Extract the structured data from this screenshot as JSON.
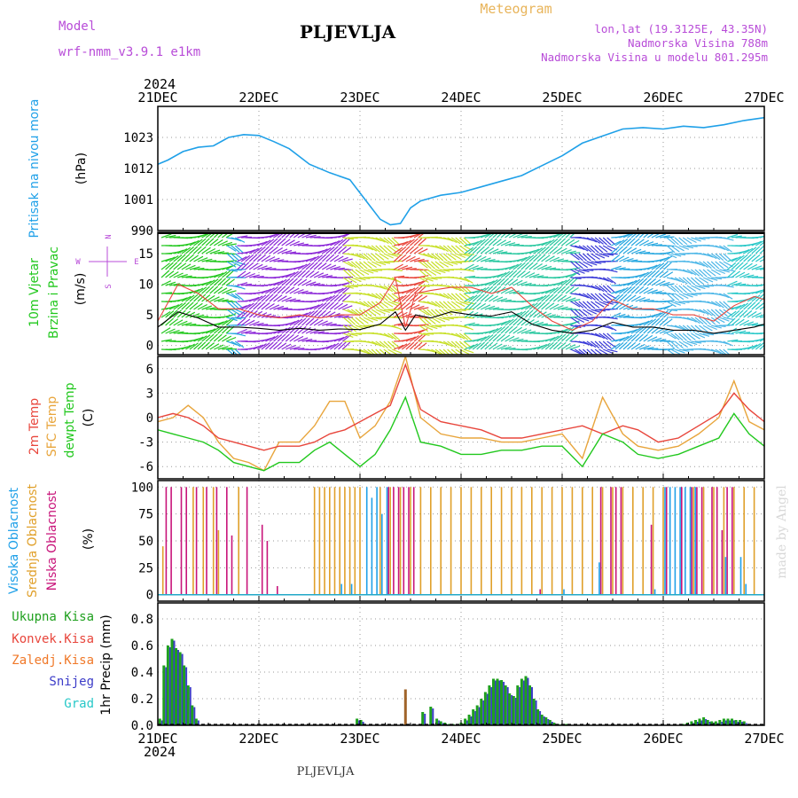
{
  "header": {
    "model_label": "Model",
    "model_name": "wrf-nmm_v3.9.1  e1km",
    "station": "PLJEVLJA",
    "product": "Meteogram",
    "lonlat": "lon,lat (19.3125E, 43.35N)",
    "elevation": "Nadmorska Visina 788m",
    "model_elevation": "Nadmorska Visina u modelu 801.295m"
  },
  "footer": {
    "station": "PLJEVLJA",
    "credit": "made by Angel"
  },
  "time_axis": {
    "year": "2024",
    "ticks": [
      "21DEC",
      "22DEC",
      "23DEC",
      "24DEC",
      "25DEC",
      "26DEC",
      "27DEC"
    ]
  },
  "colors": {
    "pressure": "#1fa0e8",
    "temp2m": "#e8463c",
    "sfc": "#e8a53c",
    "dewpt": "#22c81e",
    "wind_black": "#000000",
    "wind_red": "#e8463c",
    "high_cloud": "#1fa0e8",
    "mid_cloud": "#e0a02a",
    "low_cloud": "#c8147a",
    "total_precip": "#1fa01e",
    "snow": "#3c3cc8",
    "conv": "#e8463c",
    "frz": "#f07828",
    "grad": "#28c8c8"
  },
  "chart_data": [
    {
      "type": "line",
      "title": "",
      "ylabel": [
        "Pritisak na nivou mora",
        "(hPa)"
      ],
      "ylim": [
        990,
        1034
      ],
      "yticks": [
        990,
        1001,
        1012,
        1023
      ],
      "x_unit": "days since 21DEC 00",
      "grid": true,
      "series": [
        {
          "name": "Pritisak na nivou mora",
          "x": [
            0,
            0.1,
            0.25,
            0.4,
            0.55,
            0.7,
            0.85,
            1.0,
            1.15,
            1.3,
            1.5,
            1.7,
            1.9,
            2.05,
            2.2,
            2.3,
            2.4,
            2.5,
            2.6,
            2.7,
            2.8,
            3.0,
            3.2,
            3.4,
            3.6,
            3.8,
            4.0,
            4.2,
            4.4,
            4.6,
            4.8,
            5.0,
            5.2,
            5.4,
            5.6,
            5.8,
            6.0
          ],
          "values": [
            1013.5,
            1015,
            1018,
            1019.5,
            1020,
            1023,
            1024,
            1023.7,
            1021.5,
            1019,
            1013.5,
            1010.5,
            1008,
            1001,
            994,
            992,
            992.5,
            998,
            1000.5,
            1001.5,
            1002.5,
            1003.5,
            1005.5,
            1007.5,
            1009.5,
            1013,
            1016.5,
            1021,
            1023.5,
            1026,
            1026.5,
            1026,
            1027,
            1026.5,
            1027.5,
            1029,
            1030
          ]
        }
      ]
    },
    {
      "type": "line",
      "title": "",
      "ylabel": [
        "10m Vjetar",
        "Brzina i Pravac",
        "(m/s)"
      ],
      "compass": [
        "N",
        "W",
        "E",
        "S"
      ],
      "ylim": [
        -1.5,
        18.5
      ],
      "yticks": [
        0,
        5,
        10,
        15
      ],
      "x_unit": "days since 21DEC 00",
      "grid": true,
      "series": [
        {
          "name": "speed",
          "x": [
            0,
            0.2,
            0.4,
            0.6,
            0.8,
            1.0,
            1.2,
            1.4,
            1.6,
            1.8,
            2.0,
            2.2,
            2.35,
            2.45,
            2.55,
            2.7,
            2.9,
            3.1,
            3.3,
            3.5,
            3.7,
            3.9,
            4.1,
            4.3,
            4.5,
            4.7,
            4.9,
            5.1,
            5.3,
            5.5,
            5.7,
            5.9,
            6.0
          ],
          "values": [
            3,
            5.5,
            4.5,
            3,
            3,
            2.8,
            2.5,
            2.8,
            2.5,
            2.7,
            2.6,
            3.5,
            5.5,
            2.5,
            5,
            4.5,
            5.5,
            5,
            4.8,
            5.5,
            3.5,
            2.5,
            2,
            2.5,
            3.8,
            3,
            3,
            2.5,
            2.5,
            2,
            2.5,
            3,
            3.5
          ]
        },
        {
          "name": "gust",
          "x": [
            0,
            0.2,
            0.4,
            0.6,
            0.8,
            1.0,
            1.2,
            1.4,
            1.6,
            1.8,
            2.0,
            2.2,
            2.35,
            2.45,
            2.55,
            2.7,
            2.9,
            3.1,
            3.3,
            3.5,
            3.7,
            3.9,
            4.1,
            4.3,
            4.5,
            4.7,
            4.9,
            5.1,
            5.3,
            5.5,
            5.7,
            5.9,
            6.0
          ],
          "values": [
            4,
            10,
            8.5,
            6,
            6,
            5,
            4.5,
            5,
            4.5,
            5,
            5,
            7,
            11,
            3,
            8.5,
            9,
            9.5,
            9.5,
            8.5,
            9.5,
            6.5,
            4,
            2.5,
            4,
            7.5,
            6,
            6,
            5,
            5,
            4,
            6.5,
            8,
            7.5
          ]
        }
      ],
      "wind_segments": [
        {
          "x0": 0.0,
          "x1": 0.65,
          "color": "#22c81e"
        },
        {
          "x0": 0.65,
          "x1": 0.75,
          "color": "#28a8e0"
        },
        {
          "x0": 0.75,
          "x1": 1.8,
          "color": "#8c28d8"
        },
        {
          "x0": 1.8,
          "x1": 2.3,
          "color": "#c8e02a"
        },
        {
          "x0": 2.3,
          "x1": 2.55,
          "color": "#e8463c"
        },
        {
          "x0": 2.55,
          "x1": 3.0,
          "color": "#c8e02a"
        },
        {
          "x0": 3.0,
          "x1": 4.05,
          "color": "#2ac8a0"
        },
        {
          "x0": 4.05,
          "x1": 4.45,
          "color": "#3c3cd8"
        },
        {
          "x0": 4.45,
          "x1": 5.0,
          "color": "#28a8e0"
        },
        {
          "x0": 5.0,
          "x1": 5.6,
          "color": "#50b8e8"
        },
        {
          "x0": 5.6,
          "x1": 6.0,
          "color": "#28c8c8"
        }
      ]
    },
    {
      "type": "line",
      "title": "",
      "ylabel": [
        "2m Temp",
        "SFC Temp",
        "dewpt Temp",
        "(C)"
      ],
      "ylim": [
        -7.5,
        7.5
      ],
      "yticks": [
        -6,
        -3,
        0,
        3,
        6
      ],
      "x_unit": "days since 21DEC 00",
      "grid": true,
      "series": [
        {
          "name": "2m Temp",
          "x": [
            0,
            0.15,
            0.3,
            0.45,
            0.6,
            0.75,
            0.9,
            1.05,
            1.2,
            1.4,
            1.55,
            1.7,
            1.85,
            2.0,
            2.15,
            2.3,
            2.45,
            2.6,
            2.8,
            3.0,
            3.2,
            3.4,
            3.6,
            3.8,
            4.0,
            4.2,
            4.4,
            4.6,
            4.75,
            4.95,
            5.15,
            5.35,
            5.55,
            5.7,
            5.85,
            6.0
          ],
          "values": [
            0,
            0.5,
            0,
            -1,
            -2.5,
            -3,
            -3.5,
            -4,
            -3.5,
            -3.5,
            -3,
            -2,
            -1.5,
            -0.5,
            0.5,
            1.5,
            6.5,
            1,
            -0.5,
            -1,
            -1.5,
            -2.5,
            -2.5,
            -2,
            -1.5,
            -1,
            -2,
            -1,
            -1.5,
            -3,
            -2.5,
            -1,
            0.5,
            3,
            1,
            -0.5
          ]
        },
        {
          "name": "SFC Temp",
          "x": [
            0,
            0.15,
            0.3,
            0.45,
            0.6,
            0.75,
            0.9,
            1.05,
            1.2,
            1.4,
            1.55,
            1.7,
            1.85,
            2.0,
            2.15,
            2.3,
            2.45,
            2.6,
            2.8,
            3.0,
            3.2,
            3.4,
            3.6,
            3.8,
            4.0,
            4.2,
            4.4,
            4.6,
            4.75,
            4.95,
            5.15,
            5.35,
            5.55,
            5.7,
            5.85,
            6.0
          ],
          "values": [
            -0.5,
            0,
            1.5,
            0,
            -3,
            -5,
            -5.5,
            -6.5,
            -3,
            -3,
            -1,
            2,
            2,
            -2.5,
            -1,
            2,
            7.5,
            0,
            -2,
            -2.5,
            -2.5,
            -3,
            -3,
            -2.5,
            -2,
            -5,
            2.5,
            -2,
            -3.5,
            -4,
            -3.5,
            -2,
            0,
            4.5,
            -0.5,
            -1.5
          ]
        },
        {
          "name": "dewpt Temp",
          "x": [
            0,
            0.15,
            0.3,
            0.45,
            0.6,
            0.75,
            0.9,
            1.05,
            1.2,
            1.4,
            1.55,
            1.7,
            1.85,
            2.0,
            2.15,
            2.3,
            2.45,
            2.6,
            2.8,
            3.0,
            3.2,
            3.4,
            3.6,
            3.8,
            4.0,
            4.2,
            4.4,
            4.6,
            4.75,
            4.95,
            5.15,
            5.35,
            5.55,
            5.7,
            5.85,
            6.0
          ],
          "values": [
            -1.5,
            -2,
            -2.5,
            -3,
            -4,
            -5.5,
            -6,
            -6.5,
            -5.5,
            -5.5,
            -4,
            -3,
            -4.5,
            -6,
            -4.5,
            -1.5,
            2.5,
            -3,
            -3.5,
            -4.5,
            -4.5,
            -4,
            -4,
            -3.5,
            -3.5,
            -6,
            -2,
            -3,
            -4.5,
            -5,
            -4.5,
            -3.5,
            -2.5,
            0.5,
            -2,
            -3.5
          ]
        }
      ]
    },
    {
      "type": "bar",
      "title": "",
      "ylabel": [
        "Visoka Oblacnost",
        "Srednja Oblacnost",
        "Niska Oblacnost",
        "(%)"
      ],
      "ylim": [
        -6,
        106
      ],
      "yticks": [
        0,
        25,
        50,
        75,
        100
      ],
      "x_unit": "days since 21DEC 00",
      "grid": true,
      "series": [
        {
          "name": "Visoka Oblacnost",
          "x": [
            1.8,
            1.9,
            2.05,
            2.1,
            2.15,
            2.2,
            2.25,
            4.0,
            4.35,
            4.9,
            5.0,
            5.05,
            5.1,
            5.15,
            5.2,
            5.25,
            5.3,
            5.6,
            5.75,
            5.8
          ],
          "values": [
            10,
            10,
            100,
            90,
            100,
            75,
            100,
            5,
            30,
            5,
            100,
            100,
            100,
            100,
            100,
            100,
            100,
            35,
            35,
            10
          ]
        },
        {
          "name": "Srednja Oblacnost",
          "x": [
            0.05,
            0.35,
            0.45,
            0.55,
            0.6,
            0.8,
            1.55,
            1.6,
            1.65,
            1.7,
            1.75,
            1.8,
            1.85,
            1.9,
            1.95,
            2.0,
            2.2,
            2.3,
            2.4,
            2.5,
            2.6,
            2.7,
            2.8,
            2.9,
            3.0,
            3.1,
            3.2,
            3.3,
            3.4,
            3.5,
            3.6,
            3.7,
            3.8,
            3.9,
            4.0,
            4.1,
            4.2,
            4.3,
            4.4,
            4.5,
            4.6,
            4.7,
            4.8,
            4.9,
            5.0,
            5.3,
            5.4,
            5.5,
            5.6,
            5.7,
            5.8,
            5.9
          ],
          "values": [
            45,
            100,
            100,
            100,
            60,
            100,
            100,
            100,
            100,
            100,
            100,
            100,
            100,
            100,
            100,
            100,
            100,
            100,
            100,
            100,
            100,
            100,
            100,
            100,
            100,
            100,
            100,
            100,
            100,
            100,
            100,
            100,
            100,
            100,
            100,
            100,
            100,
            100,
            100,
            100,
            100,
            100,
            100,
            100,
            100,
            100,
            100,
            100,
            100,
            100,
            100,
            100
          ]
        },
        {
          "name": "Niska Oblacnost",
          "x": [
            0.1,
            0.15,
            0.25,
            0.3,
            0.4,
            0.5,
            0.6,
            0.7,
            0.75,
            0.9,
            1.05,
            1.1,
            1.2,
            2.3,
            2.35,
            2.4,
            2.45,
            2.5,
            2.55,
            3.8,
            4.4,
            4.5,
            4.55,
            4.6,
            4.9,
            5.05,
            5.2,
            5.3,
            5.35,
            5.4,
            5.5,
            5.55,
            5.6,
            5.65,
            5.7
          ],
          "values": [
            100,
            100,
            100,
            100,
            100,
            100,
            100,
            100,
            55,
            100,
            65,
            50,
            8,
            100,
            100,
            100,
            100,
            100,
            100,
            5,
            100,
            100,
            100,
            100,
            65,
            100,
            100,
            100,
            100,
            100,
            100,
            100,
            60,
            100,
            100
          ]
        }
      ]
    },
    {
      "type": "bar",
      "title": "",
      "ylabel": [
        "1hr Precip (mm)"
      ],
      "legend_items": [
        "Ukupna Kisa",
        "Konvek.Kisa",
        "Zaledj.Kisa",
        "Snijeg",
        "Grad"
      ],
      "ylim": [
        0,
        0.92
      ],
      "yticks": [
        0,
        0.2,
        0.4,
        0.6,
        0.8
      ],
      "x_unit": "days since 21DEC 00",
      "grid": true,
      "series": [
        {
          "name": "Ukupna Kisa",
          "x": [
            0.02,
            0.06,
            0.1,
            0.14,
            0.18,
            0.22,
            0.26,
            0.3,
            0.34,
            0.38,
            1.97,
            2.01,
            2.62,
            2.7,
            2.76,
            2.8,
            2.84,
            2.88,
            2.92,
            3.0,
            3.04,
            3.08,
            3.12,
            3.16,
            3.2,
            3.24,
            3.28,
            3.32,
            3.36,
            3.4,
            3.44,
            3.48,
            3.52,
            3.56,
            3.6,
            3.64,
            3.68,
            3.72,
            3.76,
            3.8,
            3.84,
            3.88,
            3.92,
            3.96,
            4.0,
            4.04,
            5.2,
            5.24,
            5.28,
            5.32,
            5.36,
            5.4,
            5.44,
            5.48,
            5.52,
            5.56,
            5.6,
            5.64,
            5.68,
            5.72,
            5.76,
            5.8
          ],
          "values": [
            0.05,
            0.45,
            0.6,
            0.65,
            0.58,
            0.55,
            0.45,
            0.3,
            0.15,
            0.05,
            0.05,
            0.04,
            0.1,
            0.14,
            0.05,
            0.03,
            0.02,
            0.01,
            0.01,
            0.02,
            0.05,
            0.08,
            0.12,
            0.15,
            0.2,
            0.25,
            0.3,
            0.35,
            0.35,
            0.34,
            0.3,
            0.24,
            0.22,
            0.3,
            0.35,
            0.37,
            0.3,
            0.2,
            0.12,
            0.08,
            0.06,
            0.04,
            0.02,
            0.01,
            0.01,
            0.01,
            0.01,
            0.02,
            0.03,
            0.04,
            0.05,
            0.06,
            0.04,
            0.03,
            0.03,
            0.04,
            0.05,
            0.05,
            0.05,
            0.04,
            0.04,
            0.03
          ]
        },
        {
          "name": "Zaledj.Kisa",
          "x": [
            2.45
          ],
          "values": [
            0.27
          ]
        }
      ]
    }
  ]
}
